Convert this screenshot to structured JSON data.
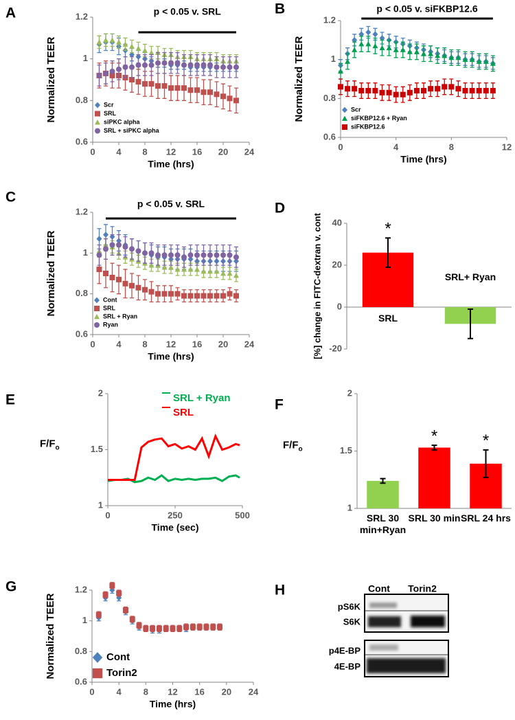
{
  "chart_data": [
    {
      "type": "scatter",
      "panel": "A",
      "xlabel": "Time (hrs)",
      "ylabel": "Normalized TEER",
      "annotation": "p < 0.05 v. SRL",
      "significance_x": [
        7,
        22
      ],
      "xlim": [
        0,
        24
      ],
      "xticks": [
        0,
        4,
        8,
        12,
        16,
        20,
        24
      ],
      "ylim": [
        0.6,
        1.2
      ],
      "yticks": [
        0.6,
        0.8,
        1,
        1.2
      ],
      "legend": "lower left",
      "x": [
        1,
        2,
        3,
        4,
        5,
        6,
        7,
        8,
        9,
        10,
        11,
        12,
        13,
        14,
        15,
        16,
        17,
        18,
        19,
        20,
        21,
        22
      ],
      "series": [
        {
          "name": "Scr",
          "color": "#4f81bd",
          "marker": "diamond",
          "values": [
            1.07,
            1.08,
            1.08,
            1.06,
            1.04,
            1.02,
            1.01,
            1.0,
            0.99,
            0.98,
            0.98,
            0.97,
            0.97,
            0.97,
            0.96,
            0.96,
            0.96,
            0.96,
            0.96,
            0.96,
            0.96,
            0.96
          ],
          "errors": [
            0.04,
            0.04,
            0.04,
            0.04,
            0.03,
            0.03,
            0.03,
            0.03,
            0.02,
            0.02,
            0.02,
            0.02,
            0.02,
            0.02,
            0.02,
            0.02,
            0.02,
            0.02,
            0.02,
            0.02,
            0.02,
            0.02
          ]
        },
        {
          "name": "SRL",
          "color": "#c0504d",
          "marker": "square",
          "values": [
            0.92,
            0.93,
            0.92,
            0.92,
            0.91,
            0.9,
            0.89,
            0.88,
            0.88,
            0.87,
            0.87,
            0.86,
            0.86,
            0.86,
            0.85,
            0.85,
            0.84,
            0.84,
            0.83,
            0.82,
            0.81,
            0.8
          ],
          "errors": [
            0.06,
            0.06,
            0.06,
            0.06,
            0.06,
            0.06,
            0.06,
            0.06,
            0.06,
            0.06,
            0.06,
            0.06,
            0.06,
            0.06,
            0.06,
            0.06,
            0.06,
            0.06,
            0.06,
            0.06,
            0.06,
            0.06
          ]
        },
        {
          "name": "siPKC alpha",
          "color": "#9bbb59",
          "marker": "triangle",
          "values": [
            1.08,
            1.09,
            1.09,
            1.08,
            1.07,
            1.06,
            1.05,
            1.04,
            1.03,
            1.03,
            1.02,
            1.02,
            1.01,
            1.01,
            1.01,
            1.0,
            1.0,
            1.0,
            1.0,
            0.99,
            0.99,
            0.99
          ],
          "errors": [
            0.03,
            0.03,
            0.03,
            0.03,
            0.03,
            0.03,
            0.03,
            0.03,
            0.03,
            0.03,
            0.03,
            0.03,
            0.03,
            0.03,
            0.03,
            0.03,
            0.03,
            0.03,
            0.03,
            0.03,
            0.03,
            0.03
          ]
        },
        {
          "name": "SRL + siPKC alpha",
          "color": "#8064a2",
          "marker": "circle",
          "values": [
            0.92,
            0.93,
            0.94,
            0.95,
            0.96,
            0.96,
            0.97,
            0.97,
            0.97,
            0.98,
            0.98,
            0.98,
            0.98,
            0.97,
            0.97,
            0.97,
            0.97,
            0.97,
            0.96,
            0.96,
            0.96,
            0.96
          ],
          "errors": [
            0.05,
            0.05,
            0.05,
            0.05,
            0.05,
            0.05,
            0.05,
            0.05,
            0.05,
            0.05,
            0.05,
            0.05,
            0.05,
            0.05,
            0.05,
            0.05,
            0.05,
            0.05,
            0.05,
            0.05,
            0.05,
            0.05
          ]
        }
      ]
    },
    {
      "type": "scatter",
      "panel": "B",
      "xlabel": "Time (hrs)",
      "ylabel": "Normalized TEER",
      "annotation": "p < 0.05 v. siFKBP12.6",
      "significance_x": [
        1.5,
        11
      ],
      "xlim": [
        0,
        12
      ],
      "xticks": [
        0,
        4,
        8,
        12
      ],
      "ylim": [
        0.6,
        1.2
      ],
      "yticks": [
        0.6,
        0.8,
        1,
        1.2
      ],
      "legend": "lower left",
      "x": [
        0,
        0.5,
        1,
        1.5,
        2,
        2.5,
        3,
        3.5,
        4,
        4.5,
        5,
        5.5,
        6,
        6.5,
        7,
        7.5,
        8,
        8.5,
        9,
        9.5,
        10,
        10.5,
        11
      ],
      "series": [
        {
          "name": "Scr",
          "color": "#4f81bd",
          "marker": "diamond",
          "values": [
            0.97,
            1.03,
            1.1,
            1.13,
            1.14,
            1.13,
            1.11,
            1.1,
            1.09,
            1.08,
            1.07,
            1.06,
            1.05,
            1.04,
            1.03,
            1.02,
            1.01,
            1.01,
            1.0,
            1.0,
            0.99,
            0.99,
            0.98
          ],
          "errors": [
            0.03,
            0.03,
            0.03,
            0.03,
            0.03,
            0.03,
            0.03,
            0.03,
            0.03,
            0.03,
            0.03,
            0.03,
            0.03,
            0.03,
            0.03,
            0.03,
            0.03,
            0.03,
            0.03,
            0.03,
            0.03,
            0.03,
            0.03
          ]
        },
        {
          "name": "siFKBP12.6 + Ryan",
          "color": "#00a050",
          "marker": "triangle",
          "values": [
            0.94,
            0.99,
            1.05,
            1.08,
            1.08,
            1.07,
            1.06,
            1.06,
            1.05,
            1.05,
            1.04,
            1.04,
            1.03,
            1.03,
            1.02,
            1.02,
            1.01,
            1.01,
            1.0,
            1.0,
            0.99,
            0.99,
            0.98
          ],
          "errors": [
            0.04,
            0.04,
            0.04,
            0.04,
            0.04,
            0.04,
            0.04,
            0.04,
            0.04,
            0.04,
            0.04,
            0.04,
            0.04,
            0.04,
            0.04,
            0.04,
            0.04,
            0.04,
            0.04,
            0.04,
            0.04,
            0.04,
            0.04
          ]
        },
        {
          "name": "siFKBP12.6",
          "color": "#cc0000",
          "marker": "square",
          "values": [
            0.86,
            0.85,
            0.85,
            0.84,
            0.84,
            0.84,
            0.83,
            0.83,
            0.82,
            0.82,
            0.83,
            0.84,
            0.84,
            0.85,
            0.85,
            0.86,
            0.86,
            0.85,
            0.84,
            0.84,
            0.84,
            0.84,
            0.84
          ],
          "errors": [
            0.04,
            0.04,
            0.04,
            0.04,
            0.04,
            0.04,
            0.04,
            0.04,
            0.04,
            0.04,
            0.04,
            0.04,
            0.04,
            0.04,
            0.04,
            0.04,
            0.04,
            0.04,
            0.04,
            0.04,
            0.04,
            0.04,
            0.04
          ]
        }
      ]
    },
    {
      "type": "scatter",
      "panel": "C",
      "xlabel": "Time (hrs)",
      "ylabel": "Normalized TEER",
      "annotation": "p < 0.05 v. SRL",
      "significance_x": [
        2,
        22
      ],
      "xlim": [
        0,
        24
      ],
      "xticks": [
        0,
        4,
        8,
        12,
        16,
        20,
        24
      ],
      "ylim": [
        0.6,
        1.2
      ],
      "yticks": [
        0.6,
        0.8,
        1,
        1.2
      ],
      "legend": "lower left",
      "x": [
        1,
        2,
        3,
        4,
        5,
        6,
        7,
        8,
        9,
        10,
        11,
        12,
        13,
        14,
        15,
        16,
        17,
        18,
        19,
        20,
        21,
        22
      ],
      "series": [
        {
          "name": "Cont",
          "color": "#4f81bd",
          "marker": "diamond",
          "values": [
            1.07,
            1.09,
            1.08,
            1.06,
            1.04,
            1.02,
            1.01,
            1.0,
            0.99,
            0.98,
            0.98,
            0.97,
            0.97,
            0.97,
            0.97,
            0.96,
            0.96,
            0.96,
            0.96,
            0.96,
            0.96,
            0.96
          ],
          "errors": [
            0.05,
            0.05,
            0.05,
            0.05,
            0.05,
            0.05,
            0.05,
            0.05,
            0.05,
            0.05,
            0.05,
            0.05,
            0.05,
            0.05,
            0.05,
            0.05,
            0.05,
            0.05,
            0.05,
            0.05,
            0.05,
            0.05
          ]
        },
        {
          "name": "SRL",
          "color": "#c0504d",
          "marker": "square",
          "values": [
            0.92,
            0.9,
            0.88,
            0.87,
            0.85,
            0.84,
            0.83,
            0.82,
            0.81,
            0.8,
            0.8,
            0.8,
            0.8,
            0.79,
            0.79,
            0.79,
            0.79,
            0.79,
            0.79,
            0.79,
            0.8,
            0.79
          ],
          "errors": [
            0.07,
            0.07,
            0.07,
            0.07,
            0.07,
            0.06,
            0.06,
            0.05,
            0.05,
            0.04,
            0.04,
            0.04,
            0.03,
            0.03,
            0.03,
            0.03,
            0.03,
            0.03,
            0.03,
            0.03,
            0.03,
            0.03
          ]
        },
        {
          "name": "SRL + Ryan",
          "color": "#9bbb59",
          "marker": "triangle",
          "values": [
            1.01,
            1.04,
            1.03,
            1.0,
            0.98,
            0.97,
            0.96,
            0.95,
            0.94,
            0.94,
            0.93,
            0.93,
            0.92,
            0.92,
            0.92,
            0.92,
            0.91,
            0.91,
            0.91,
            0.9,
            0.9,
            0.89
          ],
          "errors": [
            0.03,
            0.03,
            0.03,
            0.03,
            0.03,
            0.03,
            0.03,
            0.03,
            0.03,
            0.03,
            0.03,
            0.03,
            0.03,
            0.03,
            0.03,
            0.03,
            0.03,
            0.03,
            0.03,
            0.03,
            0.03,
            0.03
          ]
        },
        {
          "name": "Ryan",
          "color": "#8064a2",
          "marker": "circle",
          "values": [
            0.99,
            1.02,
            1.04,
            1.04,
            1.03,
            1.02,
            1.01,
            1.0,
            1.0,
            0.99,
            0.99,
            0.99,
            0.99,
            0.98,
            0.99,
            0.99,
            0.99,
            0.99,
            0.99,
            0.99,
            0.99,
            0.98
          ],
          "errors": [
            0.05,
            0.05,
            0.05,
            0.05,
            0.05,
            0.05,
            0.05,
            0.05,
            0.05,
            0.05,
            0.05,
            0.05,
            0.05,
            0.05,
            0.05,
            0.05,
            0.05,
            0.05,
            0.05,
            0.05,
            0.05,
            0.05
          ]
        }
      ]
    },
    {
      "type": "bar",
      "panel": "D",
      "ylabel": "[%] change in FITC-dextran  v. cont",
      "categories": [
        "SRL",
        "SRL+ Ryan"
      ],
      "values": [
        26,
        -8
      ],
      "errors": [
        7,
        7
      ],
      "colors": [
        "#ff0000",
        "#92d050"
      ],
      "significance": [
        "*",
        null
      ],
      "ylim": [
        -20,
        40
      ],
      "yticks": [
        -20,
        0,
        20,
        40
      ]
    },
    {
      "type": "line",
      "panel": "E",
      "xlabel": "Time (sec)",
      "ylabel_parts": [
        "F/F",
        "o"
      ],
      "legend": "upper center",
      "xlim": [
        0,
        500
      ],
      "xticks": [
        0,
        250,
        500
      ],
      "ylim": [
        1,
        2
      ],
      "yticks": [
        1,
        1.5,
        2
      ],
      "x": [
        0,
        25,
        50,
        75,
        100,
        125,
        150,
        175,
        200,
        225,
        250,
        275,
        300,
        325,
        350,
        375,
        400,
        425,
        450,
        475,
        490
      ],
      "series": [
        {
          "name": "SRL + Ryan",
          "color": "#00b050",
          "values": [
            1.22,
            1.23,
            1.23,
            1.24,
            1.21,
            1.22,
            1.25,
            1.23,
            1.27,
            1.22,
            1.24,
            1.23,
            1.24,
            1.23,
            1.24,
            1.24,
            1.25,
            1.22,
            1.26,
            1.27,
            1.25
          ]
        },
        {
          "name": "SRL",
          "color": "#ff0000",
          "values": [
            1.23,
            1.23,
            1.23,
            1.23,
            1.23,
            1.52,
            1.57,
            1.59,
            1.6,
            1.53,
            1.55,
            1.51,
            1.53,
            1.5,
            1.6,
            1.44,
            1.62,
            1.5,
            1.52,
            1.55,
            1.54
          ]
        }
      ]
    },
    {
      "type": "bar",
      "panel": "F",
      "ylabel_parts": [
        "F/F",
        "o"
      ],
      "categories": [
        "SRL 30 min+Ryan",
        "SRL 30 min",
        "SRL 24 hrs"
      ],
      "values": [
        1.24,
        1.53,
        1.39
      ],
      "errors": [
        0.02,
        0.02,
        0.12
      ],
      "colors": [
        "#92d050",
        "#ff0000",
        "#ff0000"
      ],
      "significance": [
        null,
        "*",
        "*"
      ],
      "ylim": [
        1,
        2
      ],
      "yticks": [
        1,
        1.5,
        2
      ]
    },
    {
      "type": "scatter",
      "panel": "G",
      "xlabel": "Time (hrs)",
      "ylabel": "Normalized TEER",
      "legend": "lower left",
      "xlim": [
        0,
        24
      ],
      "xticks": [
        0,
        4,
        8,
        12,
        16,
        20,
        24
      ],
      "ylim": [
        0.6,
        1.2
      ],
      "yticks": [
        0.6,
        0.8,
        1,
        1.2
      ],
      "x": [
        1,
        2,
        3,
        4,
        5,
        6,
        7,
        8,
        9,
        10,
        11,
        12,
        13,
        14,
        15,
        16,
        17,
        18,
        19
      ],
      "series": [
        {
          "name": "Cont",
          "color": "#4f81bd",
          "marker": "diamond",
          "values": [
            1.02,
            1.15,
            1.2,
            1.15,
            1.06,
            1.0,
            0.96,
            0.95,
            0.94,
            0.94,
            0.95,
            0.95,
            0.95,
            0.95,
            0.96,
            0.96,
            0.96,
            0.96,
            0.96
          ],
          "errors": [
            0.02,
            0.02,
            0.02,
            0.02,
            0.02,
            0.02,
            0.02,
            0.02,
            0.02,
            0.02,
            0.02,
            0.02,
            0.02,
            0.02,
            0.02,
            0.02,
            0.02,
            0.02,
            0.02
          ]
        },
        {
          "name": "Torin2",
          "color": "#c0504d",
          "marker": "square",
          "values": [
            1.04,
            1.17,
            1.23,
            1.18,
            1.07,
            1.01,
            0.97,
            0.95,
            0.95,
            0.95,
            0.95,
            0.95,
            0.95,
            0.96,
            0.96,
            0.96,
            0.96,
            0.96,
            0.96
          ],
          "errors": [
            0.02,
            0.02,
            0.02,
            0.02,
            0.02,
            0.02,
            0.02,
            0.02,
            0.02,
            0.02,
            0.02,
            0.02,
            0.02,
            0.02,
            0.02,
            0.02,
            0.02,
            0.02,
            0.02
          ]
        }
      ]
    }
  ],
  "blot": {
    "panel": "H",
    "columns": [
      "Cont",
      "Torin2"
    ],
    "rows": [
      "pS6K",
      "S6K",
      "p4E-BP",
      "4E-BP"
    ]
  }
}
